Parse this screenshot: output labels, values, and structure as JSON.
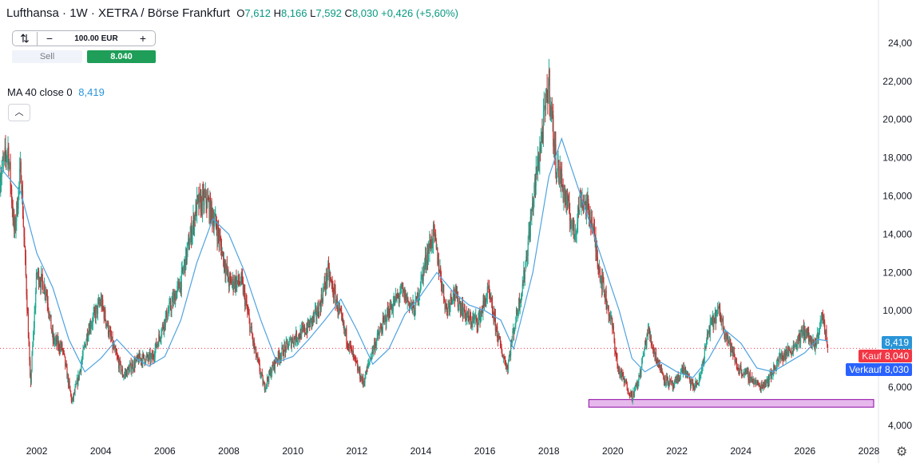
{
  "header": {
    "title": "Lufthansa · 1W · XETRA / Börse Frankfurt",
    "o_label": "O",
    "o_value": "7,612",
    "h_label": "H",
    "h_value": "8,166",
    "l_label": "L",
    "l_value": "7,592",
    "c_label": "C",
    "c_value": "8,030",
    "change": "+0,426 (+5,60%)",
    "up_color": "#089981"
  },
  "trade_panel": {
    "swap_icon": "swap-icon",
    "minus": "−",
    "quantity": "100.00 EUR",
    "plus": "+",
    "sell_label": "Sell",
    "buy_price": "8.040"
  },
  "indicator": {
    "label": "MA 40 close 0",
    "value": "8,419",
    "color": "#2a95d8"
  },
  "collapse_icon": "chevron-up-icon",
  "price_tags": {
    "ma": {
      "value": "8,419",
      "color": "#2a95d8"
    },
    "kauf": {
      "label": "Kauf",
      "value": "8,040",
      "color": "#f23645"
    },
    "verkauf": {
      "label": "Verkauf",
      "value": "8,030",
      "color": "#2962ff"
    }
  },
  "settings_icon": "gear-icon",
  "chart_data": {
    "type": "candlestick",
    "title": "Lufthansa · 1W · XETRA / Börse Frankfurt",
    "ylim": [
      3.2,
      25.0
    ],
    "xlim": [
      2000.85,
      2028.3
    ],
    "y_ticks": [
      "4,000",
      "6,000",
      "8,000",
      "10,000",
      "12,000",
      "14,000",
      "16,000",
      "18,000",
      "20,000",
      "22,000",
      "24,00"
    ],
    "y_tick_values": [
      4,
      6,
      8,
      10,
      12,
      14,
      16,
      18,
      20,
      22,
      24
    ],
    "x_ticks": [
      "2002",
      "2004",
      "2006",
      "2008",
      "2010",
      "2012",
      "2014",
      "2016",
      "2018",
      "2020",
      "2022",
      "2024",
      "2026",
      "2028"
    ],
    "x_tick_values": [
      2002,
      2004,
      2006,
      2008,
      2010,
      2012,
      2014,
      2016,
      2018,
      2020,
      2022,
      2024,
      2026,
      2028
    ],
    "price_path": [
      [
        2000.85,
        17.0
      ],
      [
        2001.1,
        18.5
      ],
      [
        2001.3,
        14.0
      ],
      [
        2001.5,
        17.5
      ],
      [
        2001.72,
        9.5
      ],
      [
        2001.8,
        6.0
      ],
      [
        2002.0,
        12.0
      ],
      [
        2002.3,
        11.0
      ],
      [
        2002.5,
        8.5
      ],
      [
        2002.8,
        8.0
      ],
      [
        2003.1,
        5.2
      ],
      [
        2003.3,
        6.5
      ],
      [
        2003.6,
        9.0
      ],
      [
        2004.0,
        10.5
      ],
      [
        2004.4,
        8.0
      ],
      [
        2004.7,
        6.6
      ],
      [
        2005.2,
        7.5
      ],
      [
        2005.6,
        7.5
      ],
      [
        2006.0,
        9.5
      ],
      [
        2006.5,
        11.5
      ],
      [
        2007.0,
        15.5
      ],
      [
        2007.3,
        15.8
      ],
      [
        2007.6,
        14.5
      ],
      [
        2008.0,
        11.5
      ],
      [
        2008.4,
        11.5
      ],
      [
        2008.8,
        8.0
      ],
      [
        2009.1,
        6.0
      ],
      [
        2009.5,
        7.5
      ],
      [
        2010.0,
        8.5
      ],
      [
        2010.4,
        9.0
      ],
      [
        2010.8,
        10.0
      ],
      [
        2011.1,
        12.0
      ],
      [
        2011.6,
        9.0
      ],
      [
        2011.9,
        7.5
      ],
      [
        2012.2,
        6.2
      ],
      [
        2012.5,
        8.0
      ],
      [
        2013.0,
        10.0
      ],
      [
        2013.4,
        11.0
      ],
      [
        2013.8,
        10.0
      ],
      [
        2014.2,
        13.0
      ],
      [
        2014.4,
        14.0
      ],
      [
        2014.8,
        10.0
      ],
      [
        2015.0,
        11.0
      ],
      [
        2015.5,
        9.5
      ],
      [
        2015.8,
        9.5
      ],
      [
        2016.1,
        11.0
      ],
      [
        2016.5,
        8.0
      ],
      [
        2016.7,
        7.0
      ],
      [
        2016.9,
        9.0
      ],
      [
        2017.2,
        11.5
      ],
      [
        2017.6,
        17.0
      ],
      [
        2017.85,
        20.0
      ],
      [
        2018.0,
        22.0
      ],
      [
        2018.2,
        18.0
      ],
      [
        2018.5,
        16.0
      ],
      [
        2018.8,
        14.0
      ],
      [
        2019.0,
        16.0
      ],
      [
        2019.3,
        15.0
      ],
      [
        2019.6,
        12.0
      ],
      [
        2019.8,
        10.5
      ],
      [
        2020.0,
        9.0
      ],
      [
        2020.15,
        7.0
      ],
      [
        2020.3,
        6.5
      ],
      [
        2020.6,
        5.5
      ],
      [
        2020.8,
        6.3
      ],
      [
        2021.1,
        9.0
      ],
      [
        2021.3,
        7.8
      ],
      [
        2021.6,
        6.5
      ],
      [
        2021.9,
        6.0
      ],
      [
        2022.2,
        7.0
      ],
      [
        2022.5,
        6.0
      ],
      [
        2022.7,
        6.3
      ],
      [
        2023.0,
        9.0
      ],
      [
        2023.3,
        10.0
      ],
      [
        2023.6,
        8.5
      ],
      [
        2023.9,
        7.0
      ],
      [
        2024.3,
        6.5
      ],
      [
        2024.6,
        6.0
      ],
      [
        2024.9,
        6.5
      ],
      [
        2025.2,
        7.5
      ],
      [
        2025.6,
        8.0
      ],
      [
        2026.0,
        9.0
      ],
      [
        2026.3,
        8.0
      ],
      [
        2026.55,
        9.8
      ],
      [
        2026.72,
        8.03
      ]
    ],
    "ma40_path": [
      [
        2000.85,
        17.5
      ],
      [
        2001.5,
        16.2
      ],
      [
        2002.0,
        13.0
      ],
      [
        2002.5,
        11.2
      ],
      [
        2003.0,
        8.5
      ],
      [
        2003.5,
        6.8
      ],
      [
        2004.0,
        7.5
      ],
      [
        2004.5,
        8.5
      ],
      [
        2005.0,
        7.6
      ],
      [
        2005.5,
        7.1
      ],
      [
        2006.0,
        7.6
      ],
      [
        2006.5,
        9.5
      ],
      [
        2007.0,
        12.5
      ],
      [
        2007.5,
        14.8
      ],
      [
        2008.0,
        14.0
      ],
      [
        2008.5,
        12.0
      ],
      [
        2009.0,
        9.5
      ],
      [
        2009.5,
        7.3
      ],
      [
        2010.0,
        7.6
      ],
      [
        2010.5,
        8.5
      ],
      [
        2011.0,
        9.5
      ],
      [
        2011.5,
        10.6
      ],
      [
        2012.0,
        9.0
      ],
      [
        2012.5,
        7.2
      ],
      [
        2013.0,
        8.0
      ],
      [
        2013.5,
        9.8
      ],
      [
        2014.0,
        10.8
      ],
      [
        2014.5,
        12.0
      ],
      [
        2015.0,
        11.0
      ],
      [
        2015.5,
        10.3
      ],
      [
        2016.0,
        10.0
      ],
      [
        2016.5,
        9.5
      ],
      [
        2016.9,
        8.0
      ],
      [
        2017.5,
        12.0
      ],
      [
        2018.0,
        17.0
      ],
      [
        2018.4,
        19.0
      ],
      [
        2018.8,
        17.0
      ],
      [
        2019.3,
        14.5
      ],
      [
        2019.8,
        12.0
      ],
      [
        2020.2,
        10.0
      ],
      [
        2020.6,
        7.5
      ],
      [
        2021.0,
        6.8
      ],
      [
        2021.5,
        7.3
      ],
      [
        2022.0,
        6.8
      ],
      [
        2022.5,
        6.5
      ],
      [
        2023.0,
        7.5
      ],
      [
        2023.5,
        9.0
      ],
      [
        2024.0,
        8.3
      ],
      [
        2024.5,
        7.0
      ],
      [
        2025.0,
        6.8
      ],
      [
        2025.5,
        7.3
      ],
      [
        2026.0,
        7.8
      ],
      [
        2026.4,
        8.5
      ],
      [
        2026.72,
        8.419
      ]
    ],
    "current_price": 8.03,
    "support_zone": {
      "x0": 2019.25,
      "x1": 2028.15,
      "y0": 5.35,
      "y1": 4.95,
      "color": "#e6b8ec"
    },
    "colors": {
      "up": "#22ab94",
      "down": "#c2302f",
      "ma": "#4ea3e0"
    }
  }
}
